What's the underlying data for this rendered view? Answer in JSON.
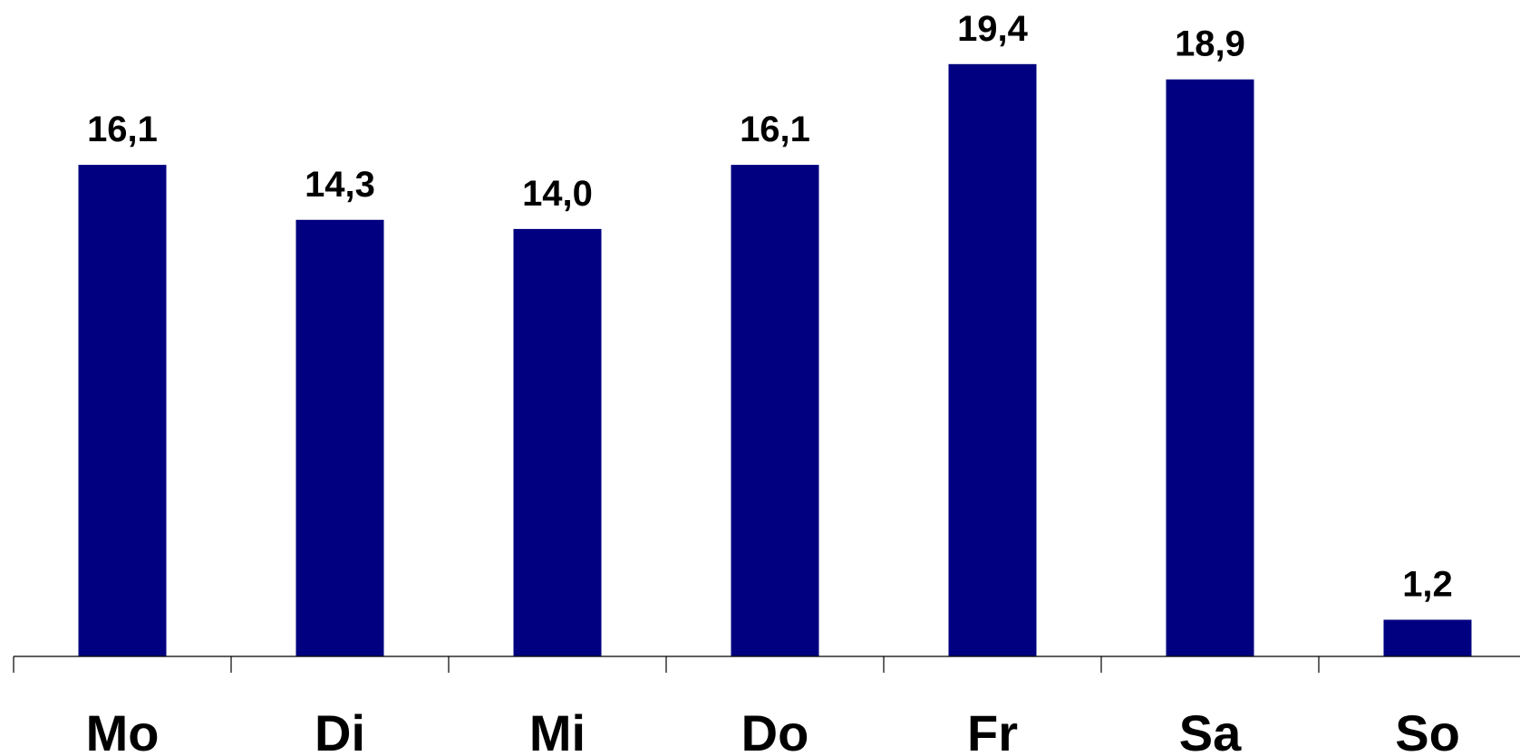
{
  "chart_data": {
    "type": "bar",
    "title": "",
    "xlabel": "",
    "ylabel": "",
    "categories": [
      "Mo",
      "Di",
      "Mi",
      "Do",
      "Fr",
      "Sa",
      "So"
    ],
    "values": [
      16.1,
      14.3,
      14.0,
      16.1,
      19.4,
      18.9,
      1.2
    ],
    "value_labels": [
      "16,1",
      "14,3",
      "14,0",
      "16,1",
      "19,4",
      "18,9",
      "1,2"
    ],
    "ylim": [
      0,
      21.5
    ],
    "grid": false,
    "legend": "none",
    "bar_color": "#000080",
    "axis_color": "#000000"
  }
}
